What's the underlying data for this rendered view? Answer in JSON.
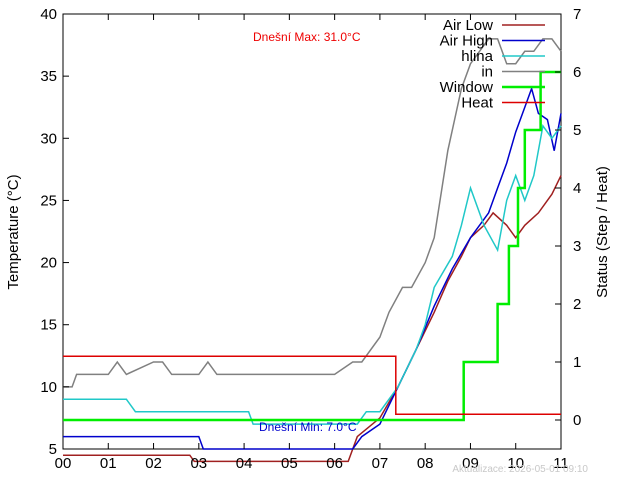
{
  "chart_data": {
    "type": "line",
    "xlabel": "",
    "ylabel": "Temperature (°C)",
    "y2label": "Status (Step / Heat)",
    "xlim": [
      0,
      11
    ],
    "ylim": [
      5,
      40
    ],
    "y2lim": [
      -0.5,
      7
    ],
    "x_tick_labels": [
      "00",
      "01",
      "02",
      "03",
      "04",
      "05",
      "06",
      "07",
      "08",
      "09",
      "10",
      "11"
    ],
    "y_ticks": [
      5,
      10,
      15,
      20,
      25,
      30,
      35,
      40
    ],
    "y2_ticks": [
      0,
      1,
      2,
      3,
      4,
      5,
      6,
      7
    ],
    "grid": false,
    "legend_position": "top-right",
    "annotations": {
      "max_text": "Dnešní Max: 31.0°C",
      "min_text": "Dnešní Min: 7.0°C",
      "updated_text": "Aktualizace: 2026-05-01 09:10"
    },
    "colors": {
      "air_low": "#a02020",
      "air_high": "#0000cc",
      "hlina": "#20c8c8",
      "in": "#808080",
      "window": "#00ee00",
      "heat": "#dd0000",
      "max_text": "#ee0000",
      "min_text": "#0000cc"
    },
    "series": [
      {
        "name": "Air Low",
        "axis": "y1",
        "color_key": "air_low",
        "x": [
          0,
          2.8,
          2.9,
          6.3,
          6.5,
          7.0,
          7.4,
          7.8,
          8.2,
          8.5,
          8.8,
          9.0,
          9.3,
          9.5,
          9.8,
          10.0,
          10.2,
          10.5,
          10.8,
          11.0
        ],
        "y": [
          4.5,
          4.5,
          4.0,
          4.0,
          6.0,
          7.5,
          10.0,
          13.0,
          16.0,
          18.5,
          20.5,
          22.0,
          23.0,
          24.0,
          23.0,
          22.0,
          23.0,
          24.0,
          25.5,
          27.0
        ]
      },
      {
        "name": "Air High",
        "axis": "y1",
        "color_key": "air_high",
        "x": [
          0,
          3.0,
          3.1,
          6.4,
          6.6,
          7.0,
          7.4,
          7.8,
          8.2,
          8.6,
          9.0,
          9.4,
          9.6,
          9.8,
          10.0,
          10.2,
          10.35,
          10.5,
          10.7,
          10.85,
          11.0
        ],
        "y": [
          6.0,
          6.0,
          5.0,
          5.0,
          6.0,
          7.0,
          10.0,
          13.0,
          16.5,
          19.5,
          22.0,
          24.0,
          26.0,
          28.0,
          30.5,
          32.5,
          34.0,
          32.0,
          31.5,
          29.0,
          32.0
        ]
      },
      {
        "name": "hlina",
        "axis": "y1",
        "color_key": "hlina",
        "x": [
          0,
          1.4,
          1.6,
          4.1,
          4.2,
          6.5,
          6.7,
          7.0,
          7.4,
          7.8,
          8.0,
          8.2,
          8.6,
          8.8,
          9.0,
          9.3,
          9.6,
          9.8,
          10.0,
          10.2,
          10.4,
          10.6,
          10.8,
          11.0
        ],
        "y": [
          9.0,
          9.0,
          8.0,
          8.0,
          7.0,
          7.0,
          8.0,
          8.0,
          10.0,
          13.0,
          15.0,
          18.0,
          20.5,
          23.0,
          26.0,
          23.0,
          21.0,
          25.0,
          27.0,
          25.0,
          27.0,
          31.0,
          30.0,
          31.0
        ]
      },
      {
        "name": "in",
        "axis": "y1",
        "color_key": "in",
        "x": [
          0,
          0.2,
          0.3,
          0.5,
          1.0,
          1.2,
          1.4,
          2.0,
          2.2,
          2.4,
          2.7,
          3.0,
          3.2,
          3.4,
          4.0,
          5.0,
          6.0,
          6.4,
          6.6,
          7.0,
          7.2,
          7.5,
          7.7,
          8.0,
          8.2,
          8.5,
          8.8,
          9.0,
          9.4,
          9.6,
          9.8,
          10.0,
          10.2,
          10.4,
          10.6,
          10.8,
          11.0
        ],
        "y": [
          10.0,
          10.0,
          11.0,
          11.0,
          11.0,
          12.0,
          11.0,
          12.0,
          12.0,
          11.0,
          11.0,
          11.0,
          12.0,
          11.0,
          11.0,
          11.0,
          11.0,
          12.0,
          12.0,
          14.0,
          16.0,
          18.0,
          18.0,
          20.0,
          22.0,
          29.0,
          34.0,
          36.0,
          38.0,
          38.0,
          36.0,
          36.0,
          37.0,
          37.0,
          38.0,
          38.0,
          37.0
        ]
      },
      {
        "name": "Window",
        "axis": "y2",
        "color_key": "window",
        "x": [
          0,
          8.85,
          8.85,
          9.6,
          9.6,
          9.85,
          9.85,
          10.05,
          10.05,
          10.2,
          10.2,
          10.55,
          10.55,
          11.0
        ],
        "y": [
          0,
          0,
          1,
          1,
          2,
          2,
          3,
          3,
          4,
          4,
          5,
          5,
          6,
          6
        ]
      },
      {
        "name": "Heat",
        "axis": "y2",
        "color_key": "heat",
        "x": [
          0,
          7.35,
          7.35,
          11.0
        ],
        "y": [
          1.1,
          1.1,
          0.1,
          0.1
        ]
      }
    ]
  }
}
